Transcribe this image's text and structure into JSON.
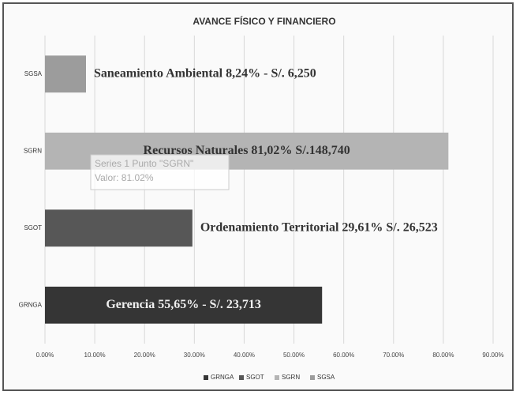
{
  "chart_data": {
    "type": "barh",
    "title": "AVANCE FÍSICO Y FINANCIERO",
    "categories": [
      "GRNGA",
      "SGOT",
      "SGRN",
      "SGSA"
    ],
    "values": [
      55.65,
      29.61,
      81.02,
      8.24
    ],
    "value_labels": [
      "Gerencia 55,65% - S/. 23,713",
      "Ordenamiento Territorial 29,61% S/. 26,523",
      "Recursos Naturales 81,02% S/.148,740",
      "Saneamiento Ambiental 8,24% - S/. 6,250"
    ],
    "colors": [
      "#353535",
      "#575757",
      "#b4b4b4",
      "#9c9c9c"
    ],
    "xlim": [
      0,
      90
    ],
    "xticks": [
      {
        "value": 0,
        "label": "0.00%"
      },
      {
        "value": 10,
        "label": "10.00%"
      },
      {
        "value": 20,
        "label": "20.00%"
      },
      {
        "value": 30,
        "label": "30.00%"
      },
      {
        "value": 40,
        "label": "40.00%"
      },
      {
        "value": 50,
        "label": "50.00%"
      },
      {
        "value": 60,
        "label": "60.00%"
      },
      {
        "value": 70,
        "label": "70.00%"
      },
      {
        "value": 80,
        "label": "80.00%"
      },
      {
        "value": 90,
        "label": "90.00%"
      }
    ],
    "grid": true,
    "legend": "bottom",
    "tooltip": {
      "line1": "Series 1 Punto \"SGRN\"",
      "line2": "Valor: 81.02%"
    }
  }
}
